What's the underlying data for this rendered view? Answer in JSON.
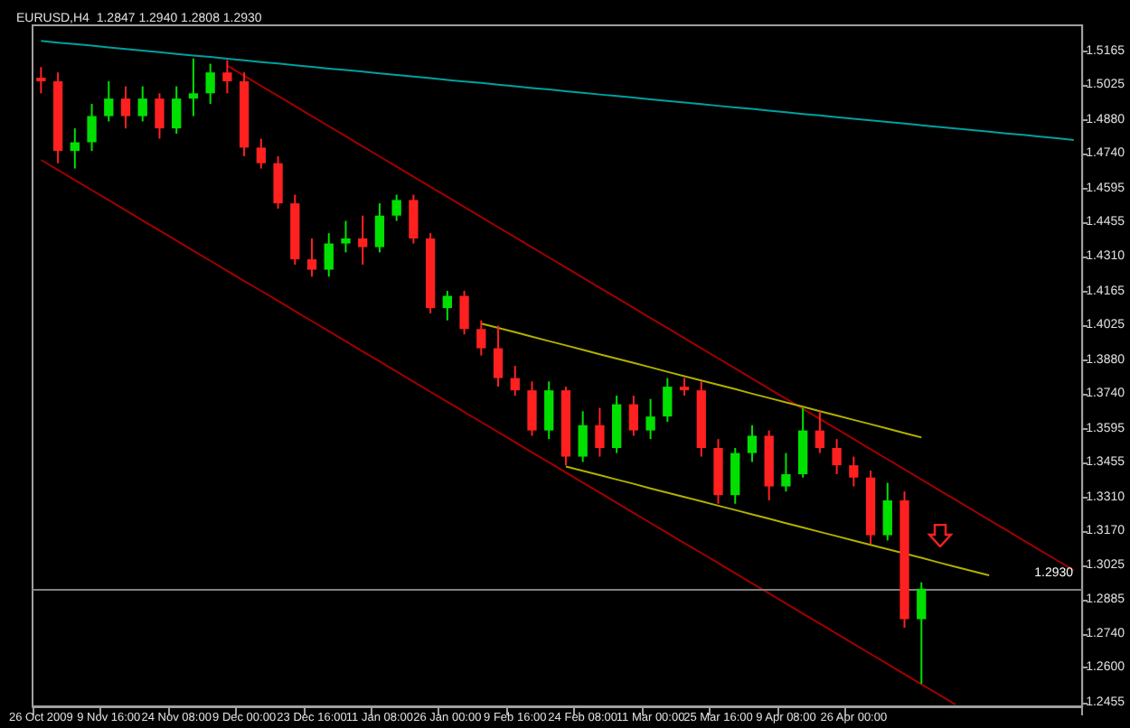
{
  "chart_data": {
    "type": "candlestick",
    "title": "EURUSD,H4  1.2847 1.2940 1.2808 1.2930",
    "categories": [
      "26 Oct 2009",
      null,
      null,
      null,
      "9 Nov 16:00",
      null,
      null,
      null,
      "24 Nov 08:00",
      null,
      null,
      null,
      "9 Dec 00:00",
      null,
      null,
      null,
      "23 Dec 16:00",
      null,
      null,
      null,
      "11 Jan 08:00",
      null,
      null,
      null,
      "26 Jan 00:00",
      null,
      null,
      null,
      "9 Feb 16:00",
      null,
      null,
      null,
      "24 Feb 08:00",
      null,
      null,
      null,
      "11 Mar 00:00",
      null,
      null,
      null,
      "25 Mar 16:00",
      null,
      null,
      null,
      "9 Apr 08:00",
      null,
      null,
      null,
      "26 Apr 00:00",
      null,
      null,
      null,
      null,
      null,
      null,
      null,
      null,
      null,
      null,
      null,
      null,
      null
    ],
    "ohlc": [
      [
        1.5056,
        1.51,
        1.4991,
        1.5041
      ],
      [
        1.5041,
        1.5078,
        1.47,
        1.4751
      ],
      [
        1.4751,
        1.4845,
        1.4678,
        1.4787
      ],
      [
        1.4787,
        1.4947,
        1.4751,
        1.4896
      ],
      [
        1.4896,
        1.5041,
        1.4874,
        1.4969
      ],
      [
        1.4969,
        1.502,
        1.4845,
        1.4896
      ],
      [
        1.4896,
        1.502,
        1.4874,
        1.4969
      ],
      [
        1.4969,
        1.4991,
        1.4802,
        1.4845
      ],
      [
        1.4845,
        1.502,
        1.4823,
        1.4969
      ],
      [
        1.4969,
        1.5136,
        1.4896,
        1.4991
      ],
      [
        1.4991,
        1.5114,
        1.4947,
        1.5078
      ],
      [
        1.5078,
        1.5129,
        1.4991,
        1.5041
      ],
      [
        1.5041,
        1.5078,
        1.4729,
        1.4765
      ],
      [
        1.4765,
        1.4802,
        1.4678,
        1.47
      ],
      [
        1.47,
        1.4729,
        1.4511,
        1.4533
      ],
      [
        1.4533,
        1.4569,
        1.4278,
        1.43
      ],
      [
        1.43,
        1.4387,
        1.4228,
        1.4257
      ],
      [
        1.4257,
        1.4409,
        1.4228,
        1.4366
      ],
      [
        1.4366,
        1.446,
        1.4329,
        1.4387
      ],
      [
        1.4387,
        1.4482,
        1.4278,
        1.4351
      ],
      [
        1.4351,
        1.4533,
        1.4329,
        1.4482
      ],
      [
        1.4482,
        1.4569,
        1.446,
        1.4547
      ],
      [
        1.4547,
        1.4569,
        1.4366,
        1.4387
      ],
      [
        1.4387,
        1.4409,
        1.4075,
        1.4097
      ],
      [
        1.4097,
        1.4169,
        1.4046,
        1.4148
      ],
      [
        1.4148,
        1.4169,
        1.3988,
        1.401
      ],
      [
        1.401,
        1.4046,
        1.39,
        1.393
      ],
      [
        1.393,
        1.4024,
        1.377,
        1.3806
      ],
      [
        1.3806,
        1.3857,
        1.3733,
        1.3755
      ],
      [
        1.3755,
        1.3792,
        1.3566,
        1.3588
      ],
      [
        1.3588,
        1.3792,
        1.3552,
        1.3755
      ],
      [
        1.3755,
        1.377,
        1.3443,
        1.3479
      ],
      [
        1.3479,
        1.3668,
        1.3457,
        1.361
      ],
      [
        1.361,
        1.3682,
        1.3479,
        1.3515
      ],
      [
        1.3515,
        1.3733,
        1.3494,
        1.3697
      ],
      [
        1.3697,
        1.3733,
        1.3566,
        1.3588
      ],
      [
        1.3588,
        1.3719,
        1.3552,
        1.3646
      ],
      [
        1.3646,
        1.3806,
        1.3624,
        1.377
      ],
      [
        1.377,
        1.3806,
        1.3733,
        1.3755
      ],
      [
        1.3755,
        1.3792,
        1.3479,
        1.3515
      ],
      [
        1.3515,
        1.3552,
        1.3283,
        1.3319
      ],
      [
        1.3319,
        1.3515,
        1.3283,
        1.3494
      ],
      [
        1.3494,
        1.361,
        1.3457,
        1.3566
      ],
      [
        1.3566,
        1.3588,
        1.3297,
        1.3355
      ],
      [
        1.3355,
        1.3494,
        1.3334,
        1.3406
      ],
      [
        1.3406,
        1.3682,
        1.3392,
        1.3588
      ],
      [
        1.3588,
        1.3668,
        1.3494,
        1.3515
      ],
      [
        1.3515,
        1.3552,
        1.3406,
        1.3443
      ],
      [
        1.3443,
        1.3479,
        1.3355,
        1.3392
      ],
      [
        1.3392,
        1.3421,
        1.3116,
        1.3152
      ],
      [
        1.3152,
        1.337,
        1.313,
        1.3297
      ],
      [
        1.3297,
        1.3334,
        1.2767,
        1.2803
      ],
      [
        1.2803,
        1.2956,
        1.2534,
        1.293
      ],
      null,
      null,
      null,
      null,
      null,
      null,
      null,
      null,
      null
    ],
    "colors": [
      "#ff2020",
      "#ff2020",
      "#00e000",
      "#00e000",
      "#00e000",
      "#ff2020",
      "#00e000",
      "#ff2020",
      "#00e000",
      "#00e000",
      "#00e000",
      "#ff2020",
      "#ff2020",
      "#ff2020",
      "#ff2020",
      "#ff2020",
      "#ff2020",
      "#00e000",
      "#00e000",
      "#ff2020",
      "#00e000",
      "#00e000",
      "#ff2020",
      "#ff2020",
      "#00e000",
      "#ff2020",
      "#ff2020",
      "#ff2020",
      "#ff2020",
      "#ff2020",
      "#00e000",
      "#ff2020",
      "#00e000",
      "#ff2020",
      "#00e000",
      "#ff2020",
      "#00e000",
      "#00e000",
      "#ff2020",
      "#ff2020",
      "#ff2020",
      "#00e000",
      "#00e000",
      "#ff2020",
      "#00e000",
      "#00e000",
      "#ff2020",
      "#ff2020",
      "#ff2020",
      "#ff2020",
      "#00e000",
      "#ff2020",
      "#00e000",
      null,
      null,
      null,
      null,
      null,
      null,
      null,
      null,
      null
    ],
    "series": [
      {
        "type": "line",
        "color": "#00a0a0",
        "values": [
          1.5209,
          1.5202,
          1.5196,
          1.5189,
          1.5182,
          1.5175,
          1.5169,
          1.5162,
          1.5155,
          1.5148,
          1.5142,
          1.5135,
          1.5128,
          1.5121,
          1.5115,
          1.5108,
          1.5101,
          1.5094,
          1.5088,
          1.5081,
          1.5074,
          1.5067,
          1.5061,
          1.5054,
          1.5047,
          1.504,
          1.5034,
          1.5027,
          1.502,
          1.5013,
          1.5007,
          1.5,
          1.4993,
          1.4986,
          1.498,
          1.4973,
          1.4966,
          1.4959,
          1.4953,
          1.4946,
          1.4939,
          1.4932,
          1.4926,
          1.4919,
          1.4912,
          1.4905,
          1.4899,
          1.4892,
          1.4885,
          1.4878,
          1.4872,
          1.4865,
          1.4858,
          1.4851,
          1.4845,
          1.4838,
          1.4831,
          1.4824,
          1.4818,
          1.4811,
          1.4804,
          1.4797
        ]
      },
      {
        "type": "line",
        "color": "#a00000",
        "values": [
          null,
          null,
          null,
          null,
          null,
          null,
          null,
          null,
          null,
          null,
          null,
          1.5106,
          1.5064,
          1.5022,
          1.498,
          1.4938,
          1.4896,
          1.4854,
          1.4812,
          1.477,
          1.4728,
          1.4686,
          1.4644,
          1.4602,
          1.456,
          1.4518,
          1.4476,
          1.4434,
          1.4392,
          1.435,
          1.4308,
          1.4266,
          1.4224,
          1.4182,
          1.414,
          1.4098,
          1.4056,
          1.4014,
          1.3972,
          1.393,
          1.3888,
          1.3846,
          1.3804,
          1.3762,
          1.372,
          1.3678,
          1.3636,
          1.3594,
          1.3552,
          1.351,
          1.3468,
          1.3426,
          1.3384,
          1.3342,
          1.33,
          1.3258,
          1.3216,
          1.3174,
          1.3132,
          1.309,
          1.3048,
          1.3006
        ]
      },
      {
        "type": "line",
        "color": "#a00000",
        "values": [
          1.4714,
          1.4672,
          1.463,
          1.4588,
          1.4546,
          1.4504,
          1.4462,
          1.442,
          1.4378,
          1.4336,
          1.4294,
          1.4252,
          1.421,
          1.4169,
          1.4127,
          1.4085,
          1.4043,
          1.4001,
          1.3959,
          1.3917,
          1.3875,
          1.3833,
          1.3791,
          1.3749,
          1.3707,
          1.3665,
          1.3623,
          1.3581,
          1.3539,
          1.3497,
          1.3455,
          1.3413,
          1.3371,
          1.3329,
          1.3287,
          1.3245,
          1.3203,
          1.3161,
          1.3119,
          1.3078,
          1.3036,
          1.2994,
          1.2952,
          1.291,
          1.2868,
          1.2826,
          1.2784,
          1.2742,
          1.27,
          1.2658,
          1.2616,
          1.2574,
          1.2532,
          1.249,
          1.2448,
          null,
          null,
          null,
          null,
          null,
          null,
          null
        ]
      },
      {
        "type": "line",
        "color": "#b0b000",
        "values": [
          null,
          null,
          null,
          null,
          null,
          null,
          null,
          null,
          null,
          null,
          null,
          null,
          null,
          null,
          null,
          null,
          null,
          null,
          null,
          null,
          null,
          null,
          null,
          null,
          null,
          null,
          1.4033,
          1.4015,
          1.3997,
          1.3978,
          1.396,
          1.3942,
          1.3924,
          1.3905,
          1.3887,
          1.3869,
          1.3851,
          1.3832,
          1.3814,
          1.3796,
          1.3778,
          1.376,
          1.3741,
          1.3723,
          1.3705,
          1.3687,
          1.3668,
          1.365,
          1.3632,
          1.3614,
          1.3596,
          1.3577,
          1.3559,
          null,
          null,
          null,
          null,
          null,
          null,
          null,
          null,
          null
        ]
      },
      {
        "type": "line",
        "color": "#b0b000",
        "values": [
          null,
          null,
          null,
          null,
          null,
          null,
          null,
          null,
          null,
          null,
          null,
          null,
          null,
          null,
          null,
          null,
          null,
          null,
          null,
          null,
          null,
          null,
          null,
          null,
          null,
          null,
          null,
          null,
          null,
          null,
          null,
          1.3438,
          1.342,
          1.3402,
          1.3384,
          1.3366,
          1.3347,
          1.3329,
          1.3311,
          1.3293,
          1.3275,
          1.3257,
          1.3239,
          1.3221,
          1.3202,
          1.3184,
          1.3166,
          1.3148,
          1.313,
          1.3112,
          1.3094,
          1.3076,
          1.3058,
          1.3039,
          1.3021,
          1.3003,
          1.2985,
          null,
          null,
          null,
          null,
          null
        ]
      }
    ],
    "ref_lines": [
      {
        "axis": "y",
        "value": 1.293,
        "label": "1.2930",
        "color": "#808080"
      }
    ],
    "ylim": [
      1.244,
      1.5274
    ],
    "yticks": [
      1.5165,
      1.5025,
      {
        "value": 1.488,
        "label": "1.4880"
      },
      {
        "value": 1.474,
        "label": "1.4740"
      },
      1.4595,
      1.4455,
      {
        "value": 1.431,
        "label": "1.4310"
      },
      1.4165,
      1.4025,
      {
        "value": 1.388,
        "label": "1.3880"
      },
      {
        "value": 1.374,
        "label": "1.3740"
      },
      1.3595,
      1.3455,
      {
        "value": 1.331,
        "label": "1.3310"
      },
      {
        "value": 1.317,
        "label": "1.3170"
      },
      1.3025,
      1.2885,
      {
        "value": 1.274,
        "label": "1.2740"
      },
      {
        "value": 1.26,
        "label": "1.2600"
      },
      1.2455
    ],
    "grid": false,
    "marker": "none"
  }
}
